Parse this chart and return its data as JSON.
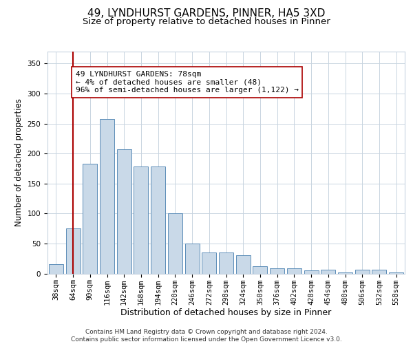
{
  "title1": "49, LYNDHURST GARDENS, PINNER, HA5 3XD",
  "title2": "Size of property relative to detached houses in Pinner",
  "xlabel": "Distribution of detached houses by size in Pinner",
  "ylabel": "Number of detached properties",
  "bar_values": [
    15,
    75,
    183,
    258,
    207,
    178,
    178,
    100,
    50,
    35,
    35,
    30,
    12,
    9,
    9,
    5,
    6,
    2,
    6,
    6,
    2
  ],
  "bin_labels": [
    "38sqm",
    "64sqm",
    "90sqm",
    "116sqm",
    "142sqm",
    "168sqm",
    "194sqm",
    "220sqm",
    "246sqm",
    "272sqm",
    "298sqm",
    "324sqm",
    "350sqm",
    "376sqm",
    "402sqm",
    "428sqm",
    "454sqm",
    "480sqm",
    "506sqm",
    "532sqm",
    "558sqm"
  ],
  "bar_color": "#c9d9e8",
  "bar_edge_color": "#5b8db8",
  "vline_color": "#aa0000",
  "vline_x_index": 1.5,
  "annotation_text": "49 LYNDHURST GARDENS: 78sqm\n← 4% of detached houses are smaller (48)\n96% of semi-detached houses are larger (1,122) →",
  "annotation_box_color": "#ffffff",
  "annotation_box_edge": "#aa0000",
  "ylim": [
    0,
    370
  ],
  "yticks": [
    0,
    50,
    100,
    150,
    200,
    250,
    300,
    350
  ],
  "footer_text": "Contains HM Land Registry data © Crown copyright and database right 2024.\nContains public sector information licensed under the Open Government Licence v3.0.",
  "bg_color": "#ffffff",
  "grid_color": "#c8d4e0",
  "title1_fontsize": 11,
  "title2_fontsize": 9.5,
  "xlabel_fontsize": 9,
  "ylabel_fontsize": 8.5,
  "tick_fontsize": 7.5,
  "annotation_fontsize": 8,
  "footer_fontsize": 6.5
}
